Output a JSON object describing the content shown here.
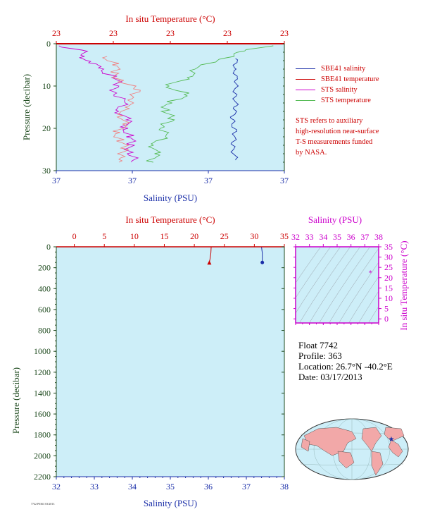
{
  "colors": {
    "salinity": "#1a2ea8",
    "temperature": "#cc0000",
    "sts_salinity": "#cc00cc",
    "sts_temperature": "#55bb55",
    "pressure_axis": "#1e4a1e",
    "plot_bg": "#cdeef8",
    "ts_axis": "#cc00cc",
    "ts_contour": "#99a0a8",
    "land": "#f2a8a8",
    "ocean": "#cdeef8"
  },
  "legend": {
    "items": [
      {
        "label": "SBE41 salinity",
        "color": "#1a2ea8"
      },
      {
        "label": "SBE41 temperature",
        "color": "#cc0000"
      },
      {
        "label": "STS salinity",
        "color": "#cc00cc"
      },
      {
        "label": "STS temperature",
        "color": "#55bb55"
      }
    ],
    "note": [
      "STS refers to auxiliary",
      "high-resolution near-surface",
      "T-S measurements funded",
      "by NASA."
    ]
  },
  "info": {
    "float": "Float  7742",
    "profile": "Profile:  363",
    "location": "Location:  26.7°N  -40.2°E",
    "date": "Date:  03/17/2013"
  },
  "footer_id": "7742 P0363 03/2013",
  "chart_data": [
    {
      "type": "line",
      "name": "near-surface profile",
      "top_axis_label": "In situ Temperature (°C)",
      "top_tick_labels": [
        "23",
        "23",
        "23",
        "23",
        "23"
      ],
      "bottom_axis_label": "Salinity (PSU)",
      "bottom_tick_labels": [
        "37",
        "37",
        "37",
        "37"
      ],
      "ylabel": "Pressure (decibar)",
      "ylim": [
        30,
        0
      ],
      "yticks": [
        0,
        10,
        20,
        30
      ],
      "salinity_range": [
        36.9,
        37.6
      ],
      "temperature_range": [
        22.6,
        23.4
      ],
      "series": [
        {
          "name": "SBE41 salinity",
          "var": "salinity",
          "p": [
            3.5,
            6,
            9,
            12,
            15,
            18,
            21,
            24,
            27.5
          ],
          "v": [
            37.45,
            37.45,
            37.45,
            37.45,
            37.45,
            37.44,
            37.45,
            37.44,
            37.45
          ]
        },
        {
          "name": "SBE41 temperature",
          "var": "temperature",
          "p": [
            0,
            0
          ],
          "v": [
            22.6,
            23.4
          ]
        },
        {
          "name": "STS salinity",
          "var": "salinity",
          "p": [
            0.5,
            1.5,
            3,
            4.5,
            6,
            8,
            10,
            12,
            14,
            16,
            18,
            20,
            22,
            24,
            26,
            28
          ],
          "v": [
            36.92,
            36.97,
            36.99,
            37.0,
            37.04,
            37.08,
            37.08,
            37.09,
            37.1,
            37.1,
            37.11,
            37.12,
            37.12,
            37.13,
            37.13,
            37.13
          ]
        },
        {
          "name": "SBE41 temperature (highres)",
          "var": "temperature",
          "p": [
            3,
            5,
            7,
            9,
            11,
            13,
            15,
            17,
            19,
            21,
            23,
            25,
            27,
            28
          ],
          "v": [
            22.78,
            22.8,
            22.81,
            22.83,
            22.88,
            22.88,
            22.83,
            22.84,
            22.83,
            22.82,
            22.82,
            22.84,
            22.84,
            22.82
          ]
        },
        {
          "name": "STS temperature",
          "var": "temperature",
          "p": [
            0.5,
            2,
            4,
            6,
            8,
            10,
            12,
            14,
            16,
            18,
            20,
            22,
            24,
            26,
            28
          ],
          "v": [
            23.35,
            23.25,
            23.15,
            23.1,
            23.05,
            23.0,
            23.05,
            23.0,
            22.98,
            23.0,
            22.98,
            22.97,
            22.95,
            22.94,
            22.94
          ]
        }
      ]
    },
    {
      "type": "line",
      "name": "full profile",
      "top_axis_label": "In situ Temperature (°C)",
      "top_ticks": [
        0,
        5,
        10,
        15,
        20,
        25,
        30,
        35
      ],
      "bottom_axis_label": "Salinity (PSU)",
      "bottom_ticks": [
        32,
        33,
        34,
        35,
        36,
        37,
        38
      ],
      "ylabel": "Pressure (decibar)",
      "ylim": [
        2200,
        0
      ],
      "yticks": [
        0,
        200,
        400,
        600,
        800,
        1000,
        1200,
        1400,
        1600,
        1800,
        2000,
        2200
      ],
      "xlim_salinity": [
        32,
        38
      ],
      "xlim_temperature": [
        -3,
        35
      ],
      "series": [
        {
          "name": "SBE41 temperature",
          "var": "temperature",
          "p": [
            0,
            5,
            60,
            120,
            150
          ],
          "v": [
            22.8,
            22.8,
            22.75,
            22.6,
            22.5
          ]
        },
        {
          "name": "SBE41 salinity",
          "var": "salinity",
          "p": [
            0,
            5,
            60,
            120,
            150
          ],
          "v": [
            37.4,
            37.4,
            37.42,
            37.42,
            37.42
          ]
        }
      ]
    },
    {
      "type": "scatter",
      "name": "T-S diagram",
      "top_axis_label": "Salinity (PSU)",
      "xticks": [
        32,
        33,
        34,
        35,
        36,
        37,
        38
      ],
      "right_axis_label": "In situ Temperature (°C)",
      "yticks": [
        0,
        5,
        10,
        15,
        20,
        25,
        30,
        35
      ],
      "xlim": [
        32,
        38
      ],
      "ylim": [
        -2,
        35
      ],
      "points": [
        {
          "s": 37.4,
          "t": 22.9
        }
      ]
    }
  ]
}
